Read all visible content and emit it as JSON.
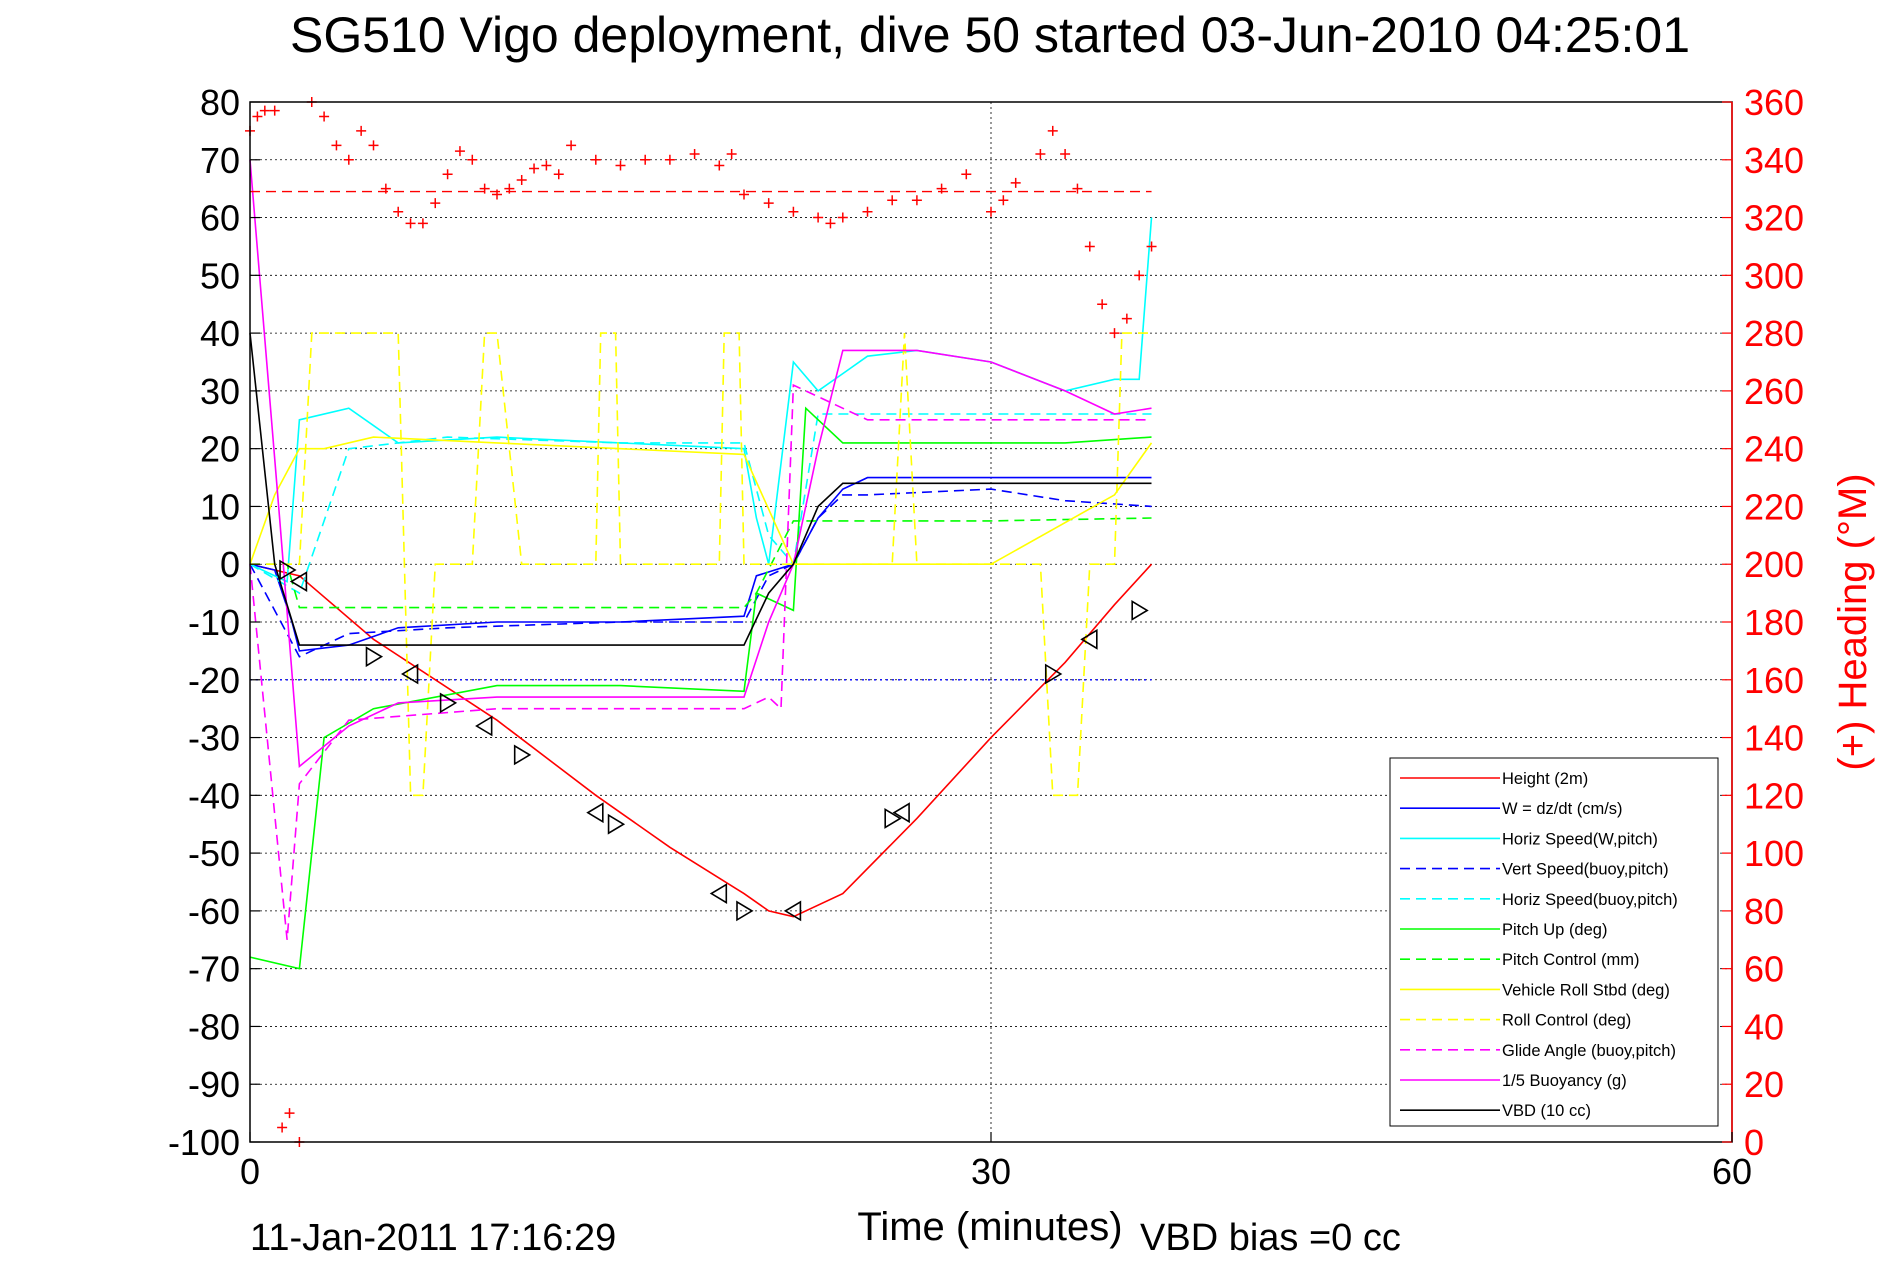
{
  "chart_data": {
    "type": "line",
    "title": "SG510 Vigo deployment, dive 50 started 03-Jun-2010 04:25:01",
    "xlabel": "Time (minutes)",
    "ylabel_right": "(+) Heading (°M)",
    "xlim": [
      0,
      60
    ],
    "ylim": [
      -100,
      80
    ],
    "ylim_right": [
      0,
      360
    ],
    "xticks": [
      "0",
      "30",
      "60"
    ],
    "yticks": [
      "80",
      "70",
      "60",
      "50",
      "40",
      "30",
      "20",
      "10",
      "0",
      "-10",
      "-20",
      "-30",
      "-40",
      "-50",
      "-60",
      "-70",
      "-80",
      "-90",
      "-100"
    ],
    "yticks_right": [
      "360",
      "340",
      "320",
      "300",
      "280",
      "260",
      "240",
      "220",
      "200",
      "180",
      "160",
      "140",
      "120",
      "100",
      "80",
      "60",
      "40",
      "20",
      "0"
    ],
    "grid": true,
    "legend_position": "bottom-right",
    "footer_date": "11-Jan-2011 17:16:29",
    "footer_bias": "VBD bias =0 cc",
    "series": [
      {
        "name": "Height (2m)",
        "color": "#ff0000",
        "style": "solid",
        "x": [
          0,
          2,
          5,
          10,
          14,
          17,
          20,
          21,
          22,
          24,
          27,
          30,
          33,
          35,
          36.5
        ],
        "y": [
          0,
          -2,
          -13,
          -27,
          -40,
          -49,
          -57,
          -60,
          -61,
          -57,
          -44,
          -30,
          -17,
          -7,
          0
        ]
      },
      {
        "name": "W = dz/dt (cm/s)",
        "color": "#0000ff",
        "style": "solid",
        "x": [
          0,
          1,
          1.7,
          2,
          4,
          6,
          10,
          15,
          20,
          20.5,
          22,
          23,
          24,
          25,
          30,
          33,
          36.5
        ],
        "y": [
          0,
          -1,
          -10,
          -15,
          -14,
          -11,
          -10,
          -10,
          -9,
          -2,
          0,
          8,
          13,
          15,
          15,
          15,
          15
        ]
      },
      {
        "name": "Horiz Speed(W,pitch)",
        "color": "#00ffff",
        "style": "solid",
        "x": [
          0,
          1.5,
          2,
          4,
          6,
          10,
          15,
          20,
          20.5,
          21,
          22,
          23,
          24,
          25,
          27,
          30,
          33,
          35,
          36,
          36.5
        ],
        "y": [
          0,
          -3,
          25,
          27,
          21,
          22,
          21,
          20,
          8,
          0,
          35,
          30,
          33,
          36,
          37,
          35,
          30,
          32,
          32,
          60
        ]
      },
      {
        "name": "Vert Speed(buoy,pitch)",
        "color": "#0000ff",
        "style": "dashed",
        "x": [
          0,
          2,
          4,
          8,
          15,
          20,
          21,
          22,
          23,
          24,
          25,
          30,
          33,
          36.5
        ],
        "y": [
          0,
          -16,
          -12,
          -11,
          -10,
          -10,
          -2,
          0,
          8,
          12,
          12,
          13,
          11,
          10
        ]
      },
      {
        "name": "Horiz Speed(buoy,pitch)",
        "color": "#00ffff",
        "style": "dashed",
        "x": [
          0,
          2,
          4,
          8,
          15,
          20,
          21,
          22,
          23,
          24,
          25,
          30,
          33,
          36.5
        ],
        "y": [
          0,
          -5,
          20,
          22,
          21,
          21,
          5,
          0,
          26,
          26,
          26,
          26,
          26,
          26
        ]
      },
      {
        "name": "Pitch Up (deg)",
        "color": "#00ff00",
        "style": "solid",
        "x": [
          0,
          2,
          3,
          5,
          10,
          15,
          20,
          20.5,
          22,
          22.5,
          24,
          30,
          33,
          36.5
        ],
        "y": [
          -68,
          -70,
          -30,
          -25,
          -21,
          -21,
          -22,
          -5,
          -8,
          27,
          21,
          21,
          21,
          22
        ]
      },
      {
        "name": "Pitch Control (mm)",
        "color": "#00ff00",
        "style": "dashed",
        "x": [
          0,
          1.5,
          2,
          15,
          20,
          20.5,
          22,
          25,
          30,
          36.5
        ],
        "y": [
          0,
          0,
          -7.5,
          -7.5,
          -7.5,
          -5,
          7.5,
          7.5,
          7.5,
          8
        ]
      },
      {
        "name": "Vehicle Roll Stbd (deg)",
        "color": "#ffff00",
        "style": "solid",
        "x": [
          0,
          1,
          2,
          3,
          5,
          10,
          15,
          20,
          22,
          25,
          30,
          35,
          36.5
        ],
        "y": [
          0,
          12,
          20,
          20,
          22,
          21,
          20,
          19,
          0,
          0,
          0,
          12,
          21
        ]
      },
      {
        "name": "Roll Control (deg)",
        "color": "#ffff00",
        "style": "dashed",
        "x": [
          0,
          2,
          2.5,
          6,
          6.5,
          7,
          7.5,
          8,
          9,
          9.5,
          10,
          11,
          11.5,
          14,
          14.2,
          14.8,
          15,
          19,
          19.2,
          19.8,
          20,
          24,
          26,
          26.5,
          27,
          32,
          32.5,
          33.5,
          34,
          35,
          35.3,
          36.5
        ],
        "y": [
          0,
          0,
          40,
          40,
          -40,
          -40,
          0,
          0,
          0,
          40,
          40,
          0,
          0,
          0,
          40,
          40,
          0,
          0,
          40,
          40,
          0,
          0,
          0,
          40,
          0,
          0,
          -40,
          -40,
          0,
          0,
          40,
          40
        ]
      },
      {
        "name": "Glide Angle (buoy,pitch)",
        "color": "#ff00ff",
        "style": "dashed",
        "x": [
          0,
          1.5,
          2,
          4,
          10,
          20,
          21,
          21.5,
          22,
          25,
          30,
          36.5
        ],
        "y": [
          0,
          -65,
          -38,
          -27,
          -25,
          -25,
          -23,
          -25,
          31,
          25,
          25,
          25
        ]
      },
      {
        "name": "1/5 Buoyancy (g)",
        "color": "#ff00ff",
        "style": "solid",
        "x": [
          0,
          1.2,
          2,
          4,
          6,
          10,
          15,
          20,
          21,
          22,
          23,
          24,
          27,
          30,
          33,
          35,
          36.5
        ],
        "y": [
          70,
          8,
          -35,
          -28,
          -24,
          -23,
          -23,
          -23,
          -10,
          0,
          20,
          37,
          37,
          35,
          30,
          26,
          27
        ]
      },
      {
        "name": "VBD (10 cc)",
        "color": "#000000",
        "style": "solid",
        "x": [
          0,
          1,
          2,
          20,
          21,
          22,
          23,
          24,
          30,
          36.5
        ],
        "y": [
          40,
          0,
          -14,
          -14,
          -5,
          0,
          10,
          14,
          14,
          14
        ]
      }
    ],
    "heading_series": {
      "name": "Heading (°M)",
      "color": "#ff0000",
      "marker": "+",
      "axis": "right",
      "x": [
        0,
        0.3,
        0.6,
        1,
        1.3,
        1.6,
        2,
        2.5,
        3,
        3.5,
        4,
        4.5,
        5,
        5.5,
        6,
        6.5,
        7,
        7.5,
        8,
        8.5,
        9,
        9.5,
        10,
        10.5,
        11,
        11.5,
        12,
        12.5,
        13,
        14,
        15,
        16,
        17,
        18,
        19,
        19.5,
        20,
        21,
        22,
        23,
        23.5,
        24,
        25,
        26,
        27,
        28,
        29,
        30,
        30.5,
        31,
        32,
        32.5,
        33,
        33.5,
        34,
        34.5,
        35,
        35.5,
        36,
        36.5
      ],
      "y": [
        350,
        355,
        357,
        357,
        5,
        10,
        0,
        360,
        355,
        345,
        340,
        350,
        345,
        330,
        322,
        318,
        318,
        325,
        335,
        343,
        340,
        330,
        328,
        330,
        333,
        337,
        338,
        335,
        345,
        340,
        338,
        340,
        340,
        342,
        338,
        342,
        328,
        325,
        322,
        320,
        318,
        320,
        322,
        326,
        326,
        330,
        335,
        322,
        326,
        332,
        342,
        350,
        342,
        330,
        310,
        290,
        280,
        285,
        300,
        310
      ],
      "mean_line": 329
    },
    "reference_lines": [
      {
        "color": "#0000ff",
        "style": "dotted",
        "y": -20,
        "x": [
          0,
          36.5
        ]
      }
    ],
    "markers": {
      "x": [
        1.5,
        2,
        5,
        6.5,
        8,
        9.5,
        11,
        14,
        14.8,
        19,
        20,
        22,
        26,
        26.4,
        32.5,
        34,
        36
      ],
      "y": [
        -1,
        -3,
        -16,
        -19,
        -24,
        -28,
        -33,
        -43,
        -45,
        -57,
        -60,
        -60,
        -44,
        -43,
        -19,
        -13,
        -8
      ]
    }
  }
}
